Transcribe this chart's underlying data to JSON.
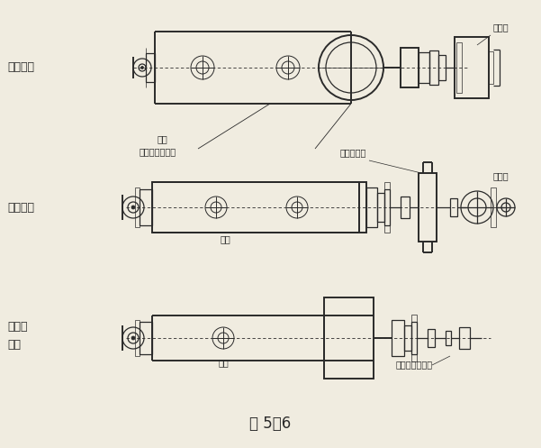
{
  "title": "图 5－6",
  "background_color": "#f0ece0",
  "labels": {
    "side_drive": "侧面驱动",
    "center_drive": "中心驱动",
    "ringless_drive_line1": "无齿轮",
    "ringless_drive_line2": "驱动",
    "motor1": "电动机",
    "motor2": "电动机",
    "motor3": "超低速同步电机",
    "reducer": "齿轮减速回",
    "jianji1": "磨机",
    "jianji2": "磨机",
    "jianji3": "磨机",
    "small_gear": "大齿轮圈小齿轮"
  },
  "text_color": "#1a1a1a",
  "line_color": "#2a2a2a",
  "fig_width": 6.01,
  "fig_height": 4.97,
  "dpi": 100
}
